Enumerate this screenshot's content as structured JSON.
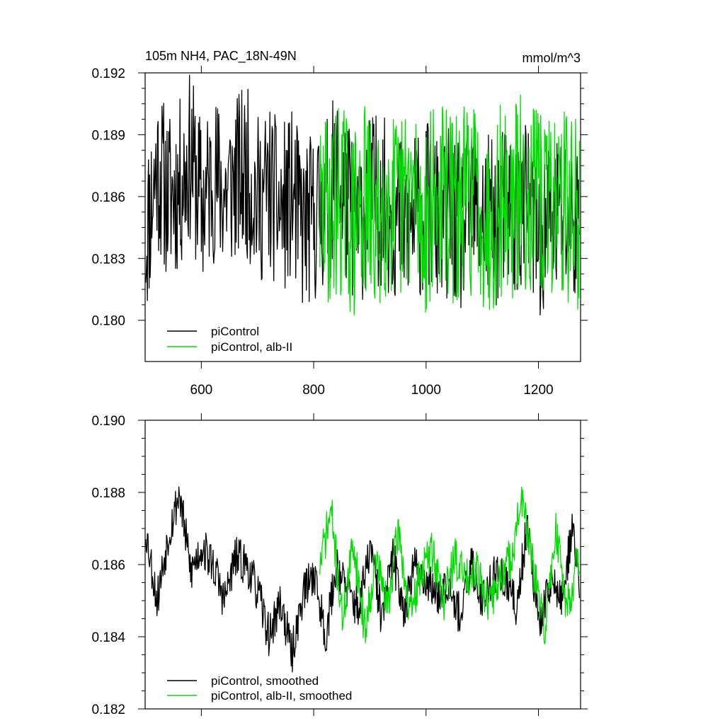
{
  "chart_data": [
    {
      "type": "line",
      "title": "105m NH4, PAC_18N-49N",
      "units": "mmol/m^3",
      "xlim": [
        500,
        1275
      ],
      "ylim": [
        0.178,
        0.192
      ],
      "xticks": [
        600,
        800,
        1000,
        1200
      ],
      "xtick_labels": [
        "600",
        "800",
        "1000",
        "1200"
      ],
      "yticks": [
        0.18,
        0.183,
        0.186,
        0.189,
        0.192
      ],
      "ytick_labels": [
        "0.180",
        "0.183",
        "0.186",
        "0.189",
        "0.192"
      ],
      "legend_position": "bottom-left",
      "series": [
        {
          "name": "piControl",
          "color": "#000000",
          "x_start": 501,
          "x_step": 20,
          "values": [
            0.184,
            0.1875,
            0.186,
            0.1865,
            0.188,
            0.1855,
            0.187,
            0.1862,
            0.1868,
            0.1872,
            0.1858,
            0.1864,
            0.1852,
            0.186,
            0.1845,
            0.185,
            0.1856,
            0.187,
            0.1855,
            0.1848,
            0.186,
            0.1858,
            0.1852,
            0.1846,
            0.185,
            0.1855,
            0.1848,
            0.1852,
            0.1843,
            0.1858,
            0.185,
            0.1846,
            0.1854,
            0.1851,
            0.1856,
            0.1842,
            0.1848,
            0.1853,
            0.1847,
            0.185
          ]
        },
        {
          "name": "piControl, alb-II",
          "color": "#00dd00",
          "x_start": 811,
          "x_step": 20,
          "values": [
            0.185,
            0.1855,
            0.186,
            0.1845,
            0.1858,
            0.1842,
            0.1862,
            0.185,
            0.1865,
            0.1848,
            0.1856,
            0.186,
            0.1852,
            0.1858,
            0.1862,
            0.1846,
            0.186,
            0.1855,
            0.1864,
            0.1858,
            0.1853,
            0.1862,
            0.1856,
            0.185
          ]
        }
      ]
    },
    {
      "type": "line",
      "xlim": [
        500,
        1275
      ],
      "ylim": [
        0.182,
        0.19
      ],
      "xticks": [
        600,
        800,
        1000,
        1200
      ],
      "yticks": [
        0.182,
        0.184,
        0.186,
        0.188,
        0.19
      ],
      "ytick_labels": [
        "0.182",
        "0.184",
        "0.186",
        "0.188",
        "0.190"
      ],
      "legend_position": "bottom-left",
      "series": [
        {
          "name": "piControl, smoothed",
          "color": "#000000",
          "x_start": 501,
          "x_step": 20,
          "values": [
            0.187,
            0.185,
            0.1868,
            0.188,
            0.1858,
            0.1865,
            0.186,
            0.185,
            0.1862,
            0.186,
            0.1852,
            0.184,
            0.185,
            0.1835,
            0.1852,
            0.1858,
            0.184,
            0.186,
            0.1852,
            0.1848,
            0.1865,
            0.1845,
            0.1862,
            0.1848,
            0.186,
            0.1855,
            0.1852,
            0.1856,
            0.1845,
            0.186,
            0.185,
            0.1858,
            0.1855,
            0.1848,
            0.1872,
            0.1842,
            0.1856,
            0.185,
            0.187,
            0.1845
          ]
        },
        {
          "name": "piControl, alb-II, smoothed",
          "color": "#00dd00",
          "x_start": 811,
          "x_step": 20,
          "values": [
            0.186,
            0.1875,
            0.1845,
            0.1866,
            0.1842,
            0.1862,
            0.1848,
            0.187,
            0.1845,
            0.1858,
            0.1864,
            0.185,
            0.1862,
            0.1856,
            0.186,
            0.1848,
            0.1856,
            0.1862,
            0.1878,
            0.1858,
            0.1842,
            0.187,
            0.1848,
            0.1862
          ]
        }
      ]
    }
  ]
}
